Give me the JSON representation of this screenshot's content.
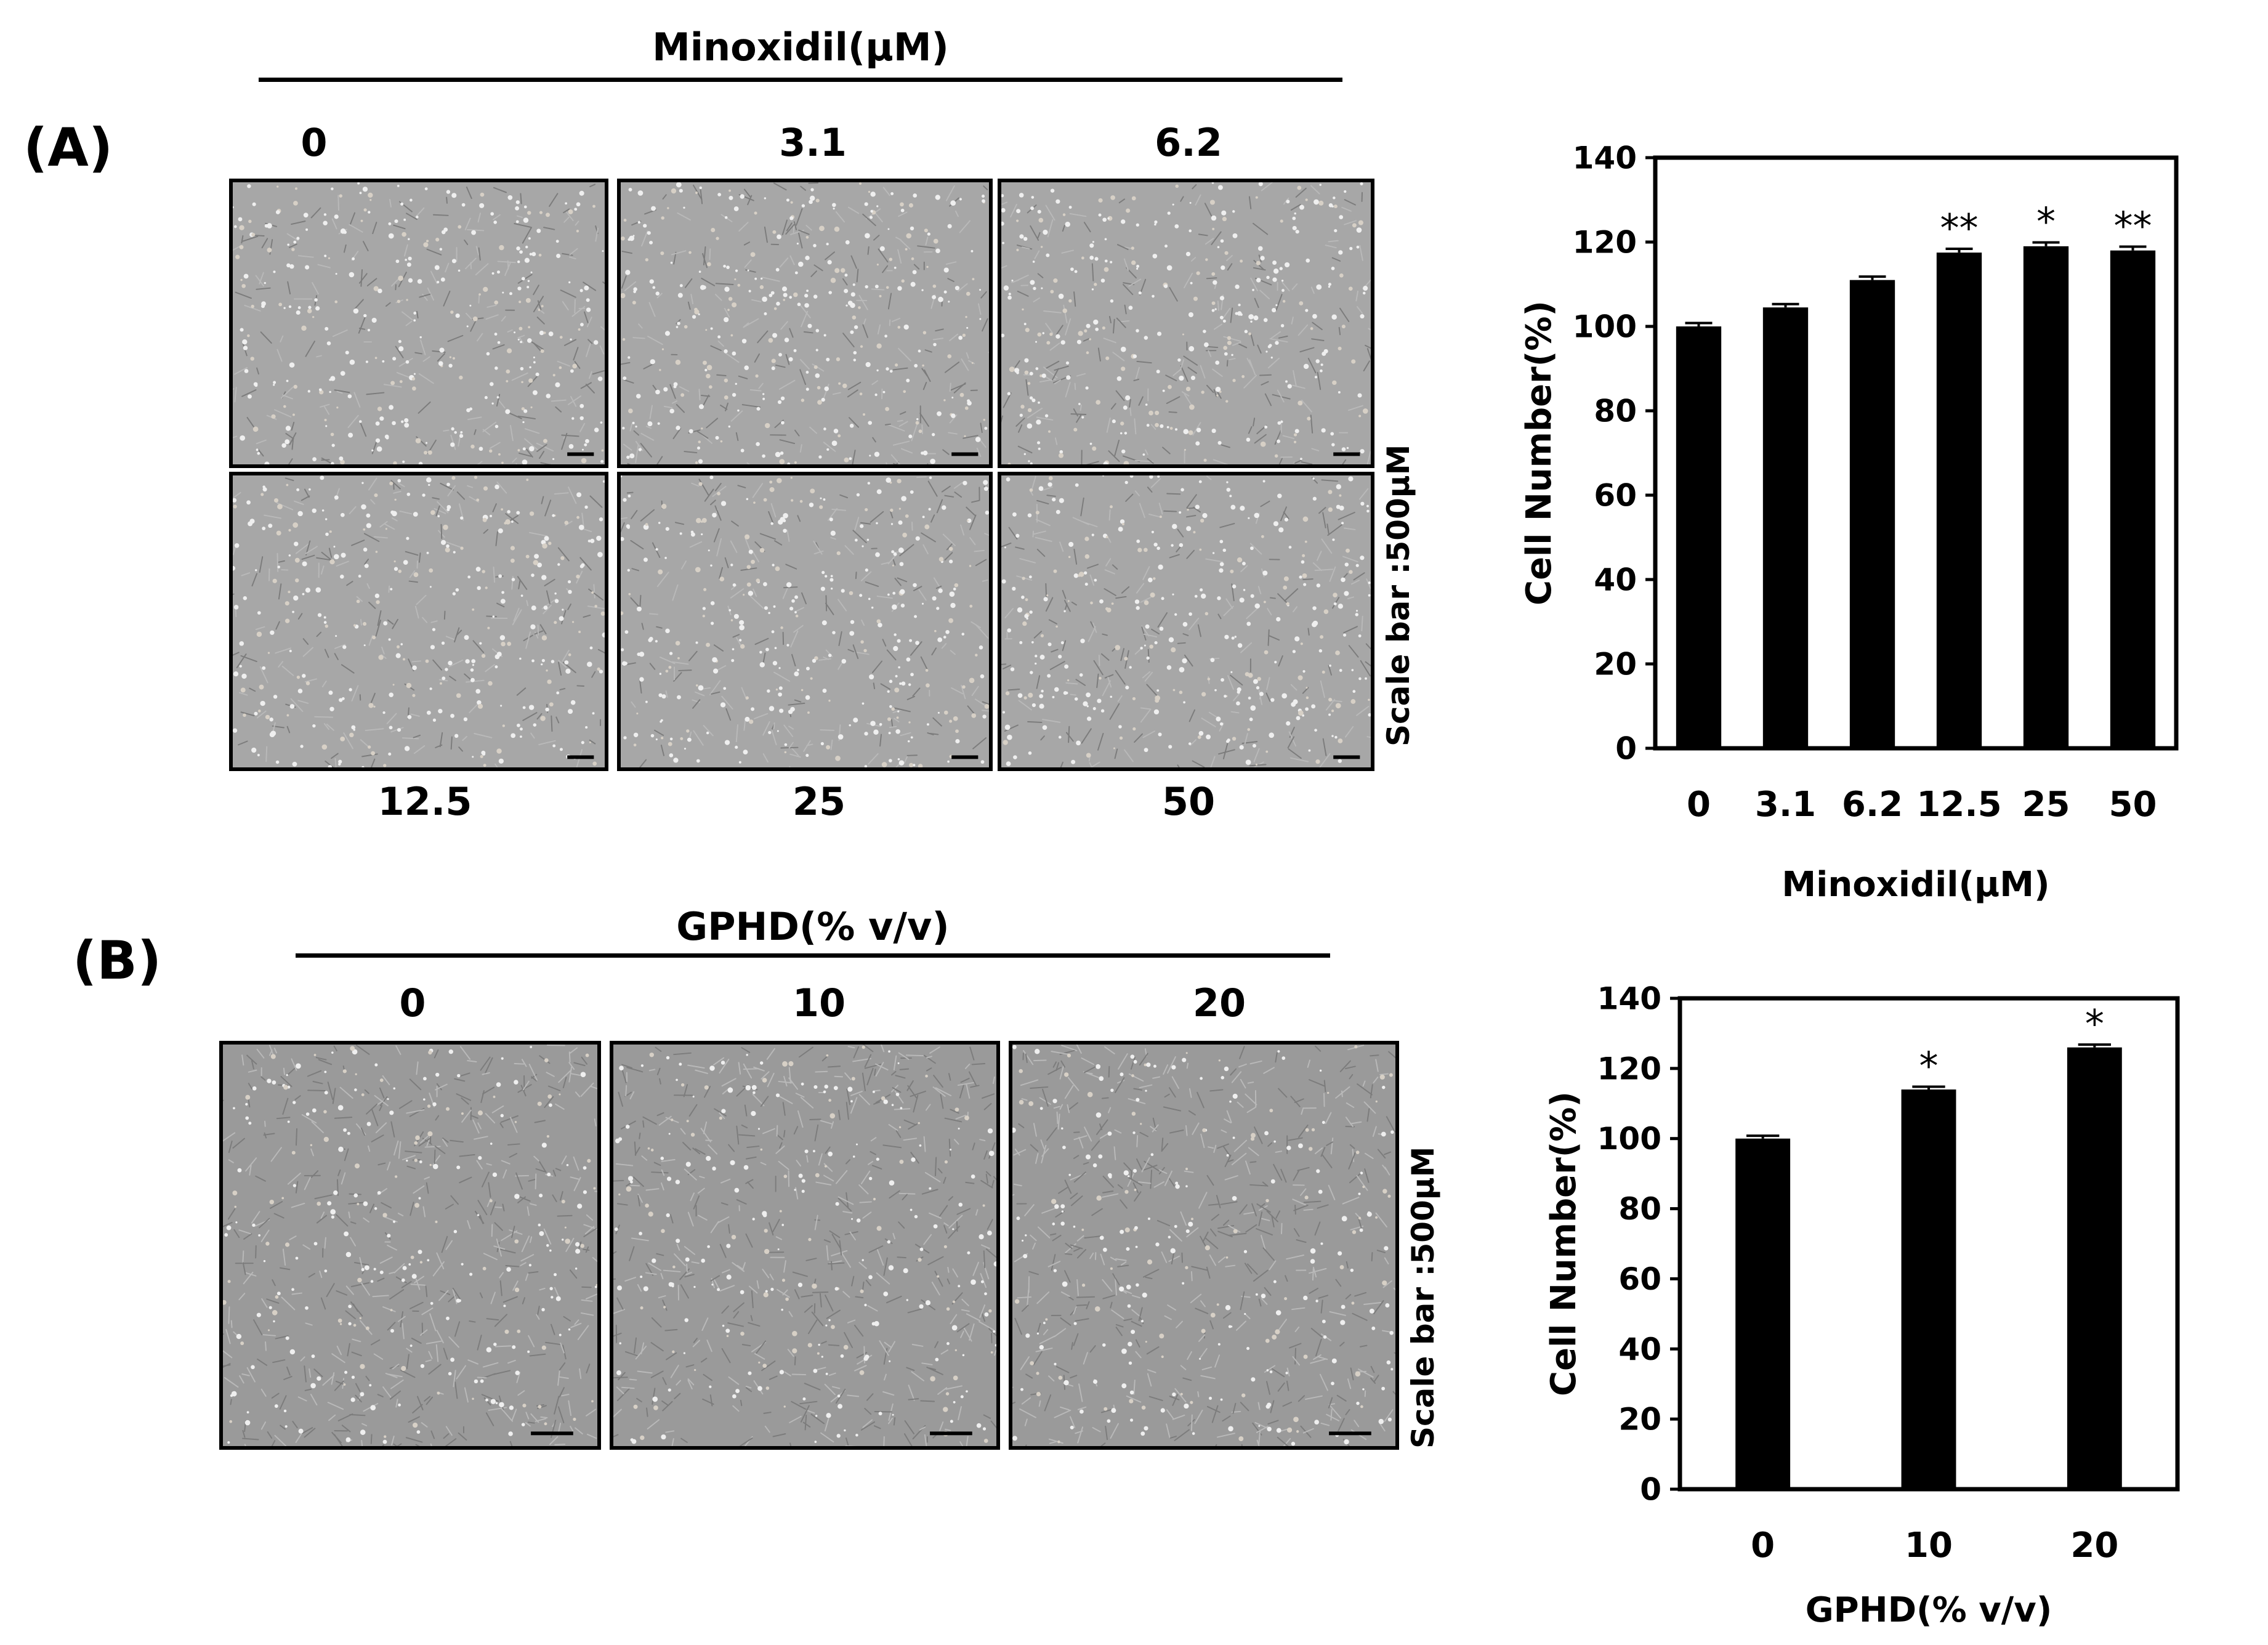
{
  "figure": {
    "panelA": {
      "label": "(A)",
      "title": "Minoxidil(μM)",
      "top_labels": [
        "0",
        "3.1",
        "6.2"
      ],
      "bottom_labels": [
        "12.5",
        "25",
        "50"
      ],
      "scale_bar_text": "Scale bar :500μM"
    },
    "panelB": {
      "label": "(B)",
      "title": "GPHD(% v/v)",
      "top_labels": [
        "0",
        "10",
        "20"
      ],
      "scale_bar_text": "Scale bar :500μM"
    }
  },
  "chart_data": [
    {
      "type": "bar",
      "categories": [
        "0",
        "3.1",
        "6.2",
        "12.5",
        "25",
        "50"
      ],
      "values": [
        100,
        104.5,
        111,
        117.5,
        119,
        118
      ],
      "errors": [
        0.8,
        0.8,
        0.8,
        0.9,
        0.9,
        0.9
      ],
      "significance": [
        "",
        "",
        "",
        "**",
        "*",
        "**"
      ],
      "xlabel": "Minoxidil(μM)",
      "ylabel": "Cell Number(%)",
      "ylim": [
        0,
        140
      ],
      "yticks": [
        0,
        20,
        40,
        60,
        80,
        100,
        120,
        140
      ],
      "grid": false,
      "bar_color": "#000000"
    },
    {
      "type": "bar",
      "categories": [
        "0",
        "10",
        "20"
      ],
      "values": [
        100,
        114,
        126
      ],
      "errors": [
        0.8,
        0.8,
        0.8
      ],
      "significance": [
        "",
        "*",
        "*"
      ],
      "xlabel": "GPHD(% v/v)",
      "ylabel": "Cell Number(%)",
      "ylim": [
        0,
        140
      ],
      "yticks": [
        0,
        20,
        40,
        60,
        80,
        100,
        120,
        140
      ],
      "grid": false,
      "bar_color": "#000000"
    }
  ]
}
